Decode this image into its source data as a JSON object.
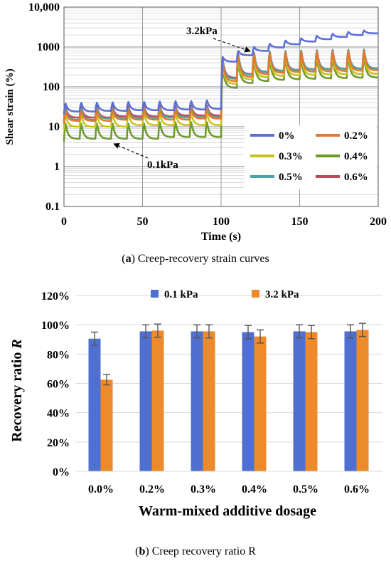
{
  "figures": {
    "a": {
      "caption_letter": "a",
      "caption_text": " Creep-recovery strain curves"
    },
    "b": {
      "caption_letter": "b",
      "caption_text": " Creep recovery ratio R"
    }
  },
  "chart_data": [
    {
      "type": "line",
      "xlabel": "Time (s)",
      "ylabel": "Shear strain (%)",
      "xlim": [
        0,
        200
      ],
      "ylim": [
        0.1,
        10000
      ],
      "yscale": "log",
      "x_ticks": [
        "0",
        "50",
        "100",
        "150",
        "200"
      ],
      "y_ticks": [
        "0.1",
        "1",
        "10",
        "100",
        "1000",
        "10,000"
      ],
      "grid": true,
      "legend_position": "lower-right",
      "annotations": [
        {
          "text": "3.2kPa",
          "x": 100,
          "y": 3000
        },
        {
          "text": "0.1kPa",
          "x": 48,
          "y": 2
        }
      ],
      "cycle_seconds": 10,
      "series": [
        {
          "name": "0%",
          "color": "#5b6fd6",
          "stage1_cycle_peaks": [
            38,
            40,
            40,
            41,
            42,
            42,
            43,
            44,
            44,
            46
          ],
          "stage1_cycle_mins": [
            24,
            24,
            25,
            25,
            26,
            26,
            26,
            27,
            27,
            28
          ],
          "stage2_cycle_peaks": [
            560,
            800,
            1000,
            1200,
            1450,
            1650,
            1900,
            2150,
            2400,
            2600
          ],
          "stage2_cycle_mins": [
            430,
            620,
            800,
            980,
            1170,
            1370,
            1570,
            1780,
            1990,
            2200
          ]
        },
        {
          "name": "0.2%",
          "color": "#e07b2e",
          "stage1_cycle_peaks": [
            25,
            25,
            26,
            26,
            26,
            27,
            27,
            27,
            28,
            28
          ],
          "stage1_cycle_mins": [
            14,
            14,
            14,
            15,
            15,
            15,
            15,
            15,
            16,
            16
          ],
          "stage2_cycle_peaks": [
            420,
            560,
            640,
            690,
            720,
            740,
            760,
            770,
            780,
            790
          ],
          "stage2_cycle_mins": [
            140,
            180,
            210,
            225,
            235,
            240,
            245,
            250,
            255,
            260
          ]
        },
        {
          "name": "0.3%",
          "color": "#c9c21d",
          "stage1_cycle_peaks": [
            20,
            20,
            20,
            21,
            21,
            21,
            21,
            22,
            22,
            22
          ],
          "stage1_cycle_mins": [
            10,
            10,
            10,
            10,
            11,
            11,
            11,
            11,
            11,
            11
          ],
          "stage2_cycle_peaks": [
            370,
            480,
            540,
            580,
            600,
            620,
            630,
            640,
            650,
            660
          ],
          "stage2_cycle_mins": [
            120,
            155,
            175,
            188,
            195,
            200,
            205,
            208,
            210,
            212
          ]
        },
        {
          "name": "0.4%",
          "color": "#6e9a2d",
          "stage1_cycle_peaks": [
            12,
            12,
            12,
            12,
            12,
            12,
            13,
            13,
            13,
            13
          ],
          "stage1_cycle_mins": [
            5,
            5,
            5,
            5,
            5,
            5,
            5.5,
            5.5,
            5.5,
            5.5
          ],
          "stage2_cycle_peaks": [
            300,
            400,
            450,
            480,
            500,
            515,
            525,
            535,
            540,
            545
          ],
          "stage2_cycle_mins": [
            95,
            125,
            140,
            150,
            156,
            160,
            164,
            167,
            170,
            172
          ]
        },
        {
          "name": "0.5%",
          "color": "#4f9fa8",
          "stage1_cycle_peaks": [
            28,
            28,
            29,
            29,
            29,
            30,
            30,
            30,
            31,
            31
          ],
          "stage1_cycle_mins": [
            15,
            15,
            16,
            16,
            16,
            16,
            17,
            17,
            17,
            17
          ],
          "stage2_cycle_peaks": [
            460,
            620,
            700,
            750,
            780,
            800,
            820,
            830,
            840,
            850
          ],
          "stage2_cycle_mins": [
            160,
            205,
            235,
            250,
            262,
            270,
            276,
            282,
            286,
            290
          ]
        },
        {
          "name": "0.6%",
          "color": "#b94a5a",
          "stage1_cycle_peaks": [
            31,
            31,
            32,
            32,
            32,
            33,
            33,
            33,
            34,
            34
          ],
          "stage1_cycle_mins": [
            17,
            17,
            17,
            18,
            18,
            18,
            18,
            19,
            19,
            19
          ],
          "stage2_cycle_peaks": [
            500,
            650,
            720,
            760,
            790,
            810,
            830,
            840,
            850,
            860
          ],
          "stage2_cycle_mins": [
            170,
            210,
            240,
            255,
            265,
            272,
            278,
            284,
            288,
            292
          ]
        }
      ]
    },
    {
      "type": "bar",
      "xlabel": "Warm-mixed additive dosage",
      "ylabel_main": "Recovery ratio ",
      "ylabel_symbol": "R",
      "categories": [
        "0.0%",
        "0.2%",
        "0.3%",
        "0.4%",
        "0.5%",
        "0.6%"
      ],
      "ylim": [
        0,
        120
      ],
      "y_ticks": [
        "0%",
        "20%",
        "40%",
        "60%",
        "80%",
        "100%",
        "120%"
      ],
      "legend_position": "top",
      "series": [
        {
          "name": "0.1 kPa",
          "color": "#4f6fd1",
          "values": [
            90.5,
            95.5,
            95.5,
            95,
            95.5,
            95.5
          ],
          "errors": [
            4.5,
            4.5,
            4.5,
            4.5,
            4.5,
            4.5
          ]
        },
        {
          "name": "3.2 kPa",
          "color": "#ed8a2b",
          "values": [
            62.5,
            96,
            95.5,
            92,
            95,
            96.5
          ],
          "errors": [
            3.5,
            4.5,
            4.5,
            4.5,
            4.5,
            4.5
          ]
        }
      ]
    }
  ]
}
